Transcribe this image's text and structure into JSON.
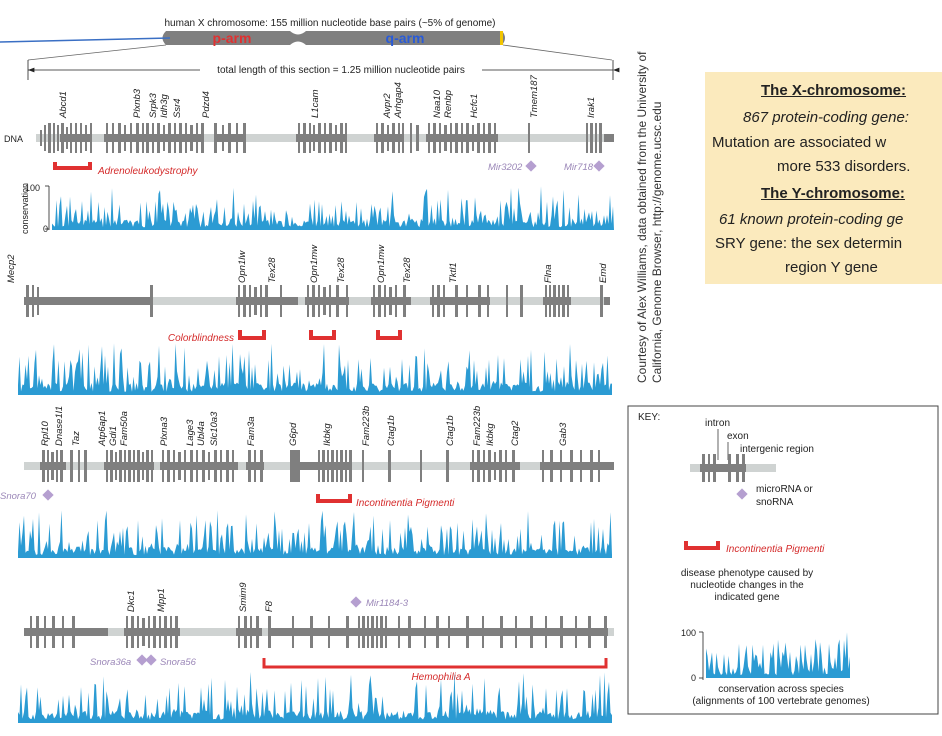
{
  "header": {
    "chromosome_label": "human X chromosome: 155 million nucleotide base pairs (~5% of genome)",
    "p_arm": "p-arm",
    "q_arm": "q-arm",
    "section_length": "total length of this section = 1.25 million nucleotide pairs"
  },
  "rows": [
    {
      "dna_label": "DNA",
      "conservation_label": "conservation",
      "axis_top": "100",
      "axis_bottom": "0",
      "genes": [
        "Abcd1",
        "Plxnb3",
        "Srpk3",
        "Idh3g",
        "Ssr4",
        "Pdzd4",
        "L1cam",
        "Avpr2",
        "Arhgap4",
        "Naa10",
        "Renbp",
        "Hcfc1",
        "Tmem187",
        "Irak1"
      ],
      "diseases": [
        "Adrenoleukodystrophy"
      ],
      "micro_rnas": [
        "Mir3202",
        "Mir718"
      ]
    },
    {
      "genes": [
        "Mecp2",
        "Opn1lw",
        "Tex28",
        "Opn1mw",
        "Tex28",
        "Opn1mw",
        "Tex28",
        "Tktl1",
        "Flna",
        "Emd"
      ],
      "diseases": [
        "Colorblindness"
      ],
      "micro_rnas": []
    },
    {
      "genes": [
        "Rpl10",
        "Dnase1l1",
        "Taz",
        "Atp6ap1",
        "Gdi1",
        "Fam50a",
        "Plxna3",
        "Lage3",
        "Ubl4a",
        "Slc10a3",
        "Fam3a",
        "G6pd",
        "Ikbkg",
        "Fam223b",
        "Ctag1b",
        "Ctag1b",
        "Fam223b",
        "Ikbkg",
        "Ctag2",
        "Gab3"
      ],
      "diseases": [
        "Incontinentia Pigmenti"
      ],
      "micro_rnas": [
        "Snora70"
      ]
    },
    {
      "genes": [
        "Dkc1",
        "Mpp1",
        "Smim9",
        "F8"
      ],
      "diseases": [
        "Hemophilia A"
      ],
      "micro_rnas": [
        "Mir1184-3",
        "Snora36a",
        "Snora56"
      ]
    }
  ],
  "credit": {
    "line1": "Courtesy of Alex Williams, data obtained from the University of",
    "line2": "California, Genome Browser, http://genome.ucsc.edu"
  },
  "info_box": {
    "x_title": "The X-chromosome:",
    "x_line1": "867 protein-coding gene:",
    "x_line2": "Mutation are associated w",
    "x_line3": "more 533 disorders.",
    "y_title": "The Y-chromosome:",
    "y_line1": "61 known protein-coding ge",
    "y_line2": "SRY gene: the sex determin",
    "y_line3": "region Y gene"
  },
  "key": {
    "title": "KEY:",
    "intron": "intron",
    "exon": "exon",
    "intergenic": "intergenic region",
    "microrna1": "microRNA or",
    "microrna2": "snoRNA",
    "disease_example": "Incontinentia Pigmenti",
    "disease_desc1": "disease phenotype caused by",
    "disease_desc2": "nucleotide changes in the",
    "disease_desc3": "indicated gene",
    "axis_top": "100",
    "axis_bottom": "0",
    "conservation1": "conservation across species",
    "conservation2": "(alignments of 100 vertebrate genomes)"
  },
  "colors": {
    "dna_backbone": "#cfd3d2",
    "gene_gray": "#7f7f7f",
    "conservation_blue": "#2b9bd3",
    "disease_red": "#e03131",
    "microrna_purple": "#b59fd0",
    "info_bg": "#fbeabd"
  }
}
